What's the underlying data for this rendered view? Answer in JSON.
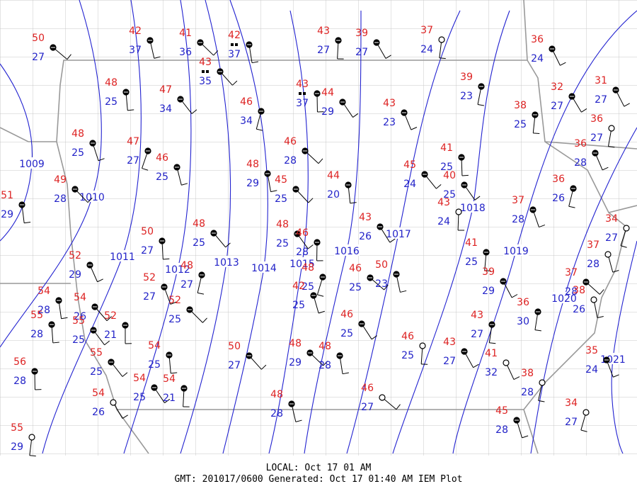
{
  "stations": [
    {
      "temp": 50,
      "dewpoint": 27
    },
    {
      "temp": 42,
      "dewpoint": 37
    },
    {
      "temp": 41,
      "dewpoint": 36
    },
    {
      "temp": 42,
      "dewpoint": 37
    },
    {
      "temp": 43,
      "dewpoint": 35
    },
    {
      "temp": 48,
      "dewpoint": 25
    },
    {
      "temp": 47,
      "dewpoint": 34
    },
    {
      "temp": 43,
      "dewpoint": 37
    },
    {
      "temp": 44,
      "dewpoint": 29
    },
    {
      "temp": 43,
      "dewpoint": 27
    },
    {
      "temp": 39,
      "dewpoint": 27
    },
    {
      "temp": 37,
      "dewpoint": 24
    },
    {
      "temp": 36,
      "dewpoint": 24
    },
    {
      "temp": 39,
      "dewpoint": 23
    },
    {
      "temp": 43,
      "dewpoint": 23
    },
    {
      "temp": 46,
      "dewpoint": 34
    },
    {
      "temp": 48,
      "dewpoint": 25
    },
    {
      "temp": 47,
      "dewpoint": 27
    },
    {
      "temp": 46,
      "dewpoint": 25
    },
    {
      "temp": 46,
      "dewpoint": 28
    },
    {
      "temp": 48,
      "dewpoint": 29
    },
    {
      "temp": 45,
      "dewpoint": 25
    },
    {
      "temp": 44,
      "dewpoint": 20
    },
    {
      "temp": 45,
      "dewpoint": 24
    },
    {
      "temp": 41,
      "dewpoint": 25
    },
    {
      "temp": 40,
      "dewpoint": 25
    },
    {
      "temp": 43,
      "dewpoint": 24
    },
    {
      "temp": 32,
      "dewpoint": 27
    },
    {
      "temp": 38,
      "dewpoint": 25
    },
    {
      "temp": 31,
      "dewpoint": 27
    },
    {
      "temp": 36,
      "dewpoint": 27
    },
    {
      "temp": 36,
      "dewpoint": 28
    },
    {
      "temp": 36,
      "dewpoint": 26
    },
    {
      "temp": 37,
      "dewpoint": 28
    },
    {
      "temp": 34,
      "dewpoint": 27
    },
    {
      "temp": 37,
      "dewpoint": 28
    },
    {
      "temp": 37,
      "dewpoint": 28
    },
    {
      "temp": 38,
      "dewpoint": 26
    },
    {
      "temp": 49,
      "dewpoint": 28
    },
    {
      "temp": 51,
      "dewpoint": 29
    },
    {
      "temp": 48,
      "dewpoint": 25
    },
    {
      "temp": 50,
      "dewpoint": 27
    },
    {
      "temp": 48,
      "dewpoint": 25
    },
    {
      "temp": 46,
      "dewpoint": 28
    },
    {
      "temp": 43,
      "dewpoint": 26
    },
    {
      "temp": 41,
      "dewpoint": 25
    },
    {
      "temp": 39,
      "dewpoint": 29
    },
    {
      "temp": 36,
      "dewpoint": 30
    },
    {
      "temp": 52,
      "dewpoint": 29
    },
    {
      "temp": 48,
      "dewpoint": 27
    },
    {
      "temp": 52,
      "dewpoint": 27
    },
    {
      "temp": 48,
      "dewpoint": 25
    },
    {
      "temp": 42,
      "dewpoint": 25
    },
    {
      "temp": 46,
      "dewpoint": 25
    },
    {
      "temp": 50,
      "dewpoint": 23
    },
    {
      "temp": 52,
      "dewpoint": 25
    },
    {
      "temp": 54,
      "dewpoint": 28
    },
    {
      "temp": 54,
      "dewpoint": 26
    },
    {
      "temp": 55,
      "dewpoint": 28
    },
    {
      "temp": 55,
      "dewpoint": 25
    },
    {
      "temp": 52,
      "dewpoint": 21
    },
    {
      "temp": 46,
      "dewpoint": 25
    },
    {
      "temp": 46,
      "dewpoint": 25
    },
    {
      "temp": 43,
      "dewpoint": 27
    },
    {
      "temp": 43,
      "dewpoint": 27
    },
    {
      "temp": 41,
      "dewpoint": 32
    },
    {
      "temp": 38,
      "dewpoint": 28
    },
    {
      "temp": 35,
      "dewpoint": 24
    },
    {
      "temp": 34,
      "dewpoint": 27
    },
    {
      "temp": 45,
      "dewpoint": 28
    },
    {
      "temp": 46,
      "dewpoint": 27
    },
    {
      "temp": 48,
      "dewpoint": 28
    },
    {
      "temp": 48,
      "dewpoint": 29
    },
    {
      "temp": 48,
      "dewpoint": 28
    },
    {
      "temp": 50,
      "dewpoint": 27
    },
    {
      "temp": 54,
      "dewpoint": 25
    },
    {
      "temp": 55,
      "dewpoint": 25
    },
    {
      "temp": 56,
      "dewpoint": 28
    },
    {
      "temp": 54,
      "dewpoint": 25
    },
    {
      "temp": 54,
      "dewpoint": 21
    },
    {
      "temp": 54,
      "dewpoint": 26
    },
    {
      "temp": 55,
      "dewpoint": 29
    }
  ],
  "isobars": [
    1009,
    1010,
    1011,
    1012,
    1013,
    1014,
    1015,
    1016,
    1017,
    1018,
    1019,
    1020,
    1021
  ],
  "footer": {
    "local": "LOCAL: Oct 17 01 AM",
    "gmt": "GMT: 201017/0600 Generated: Oct 17 01:40 AM IEM Plot"
  }
}
